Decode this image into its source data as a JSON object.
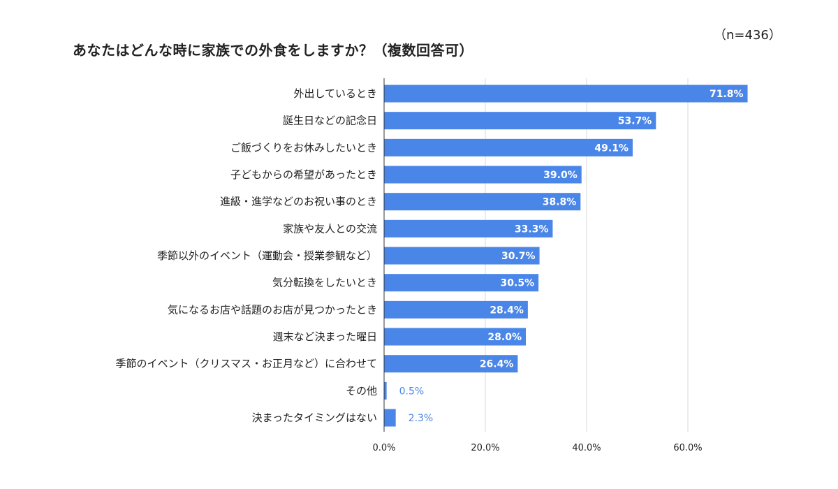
{
  "chart_data": {
    "type": "bar",
    "orientation": "horizontal",
    "title": "あなたはどんな時に家族での外食をしますか？（複数回答可）",
    "note": "（n=436）",
    "categories": [
      "外出しているとき",
      "誕生日などの記念日",
      "ご飯づくりをお休みしたいとき",
      "子どもからの希望があったとき",
      "進級・進学などのお祝い事のとき",
      "家族や友人との交流",
      "季節以外のイベント（運動会・授業参観など）",
      "気分転換をしたいとき",
      "気になるお店や話題のお店が見つかったとき",
      "週末など決まった曜日",
      "季節のイベント（クリスマス・お正月など）に合わせて",
      "その他",
      "決まったタイミングはない"
    ],
    "values": [
      71.8,
      53.7,
      49.1,
      39.0,
      38.8,
      33.3,
      30.7,
      30.5,
      28.4,
      28.0,
      26.4,
      0.5,
      2.3
    ],
    "data_labels": [
      "71.8%",
      "53.7%",
      "49.1%",
      "39.0%",
      "38.8%",
      "33.3%",
      "30.7%",
      "30.5%",
      "28.4%",
      "28.0%",
      "26.4%",
      "0.5%",
      "2.3%"
    ],
    "xlim": [
      0,
      60
    ],
    "x_ticks": [
      0,
      20,
      40,
      60
    ],
    "x_tick_labels": [
      "0.0%",
      "20.0%",
      "40.0%",
      "60.0%"
    ],
    "grid": true,
    "colors": {
      "bar": "#4a86e8",
      "label_inside": "#ffffff",
      "label_outside": "#4a86e8",
      "grid": "#d9d9d9",
      "axis": "#333333",
      "text": "#222222"
    }
  }
}
